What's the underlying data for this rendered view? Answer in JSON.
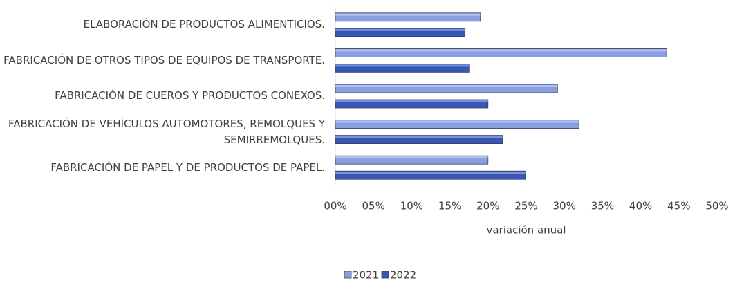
{
  "chart_data": {
    "type": "barh",
    "x_axis_label": "variación anual",
    "categories": [
      "ELABORACIÓN DE PRODUCTOS ALIMENTICIOS.",
      "FABRICACIÓN DE OTROS TIPOS DE EQUIPOS DE TRANSPORTE.",
      "FABRICACIÓN DE CUEROS Y PRODUCTOS CONEXOS.",
      "FABRICACIÓN DE VEHÍCULOS AUTOMOTORES, REMOLQUES Y SEMIRREMOLQUES.",
      "FABRICACIÓN DE PAPEL Y DE PRODUCTOS DE PAPEL."
    ],
    "series": [
      {
        "name": "2021",
        "color": "#8a9fe0",
        "values": [
          19,
          43.4,
          29.1,
          31.9,
          20
        ]
      },
      {
        "name": "2022",
        "color": "#3557b8",
        "values": [
          17,
          17.6,
          20,
          21.9,
          24.9
        ]
      }
    ],
    "xlim": [
      0,
      50
    ],
    "xticks": [
      {
        "value": 0,
        "label": "00%"
      },
      {
        "value": 5,
        "label": "05%"
      },
      {
        "value": 10,
        "label": "10%"
      },
      {
        "value": 15,
        "label": "15%"
      },
      {
        "value": 20,
        "label": "20%"
      },
      {
        "value": 25,
        "label": "25%"
      },
      {
        "value": 30,
        "label": "30%"
      },
      {
        "value": 35,
        "label": "35%"
      },
      {
        "value": 40,
        "label": "40%"
      },
      {
        "value": 45,
        "label": "45%"
      },
      {
        "value": 50,
        "label": "50%"
      }
    ],
    "legend": "bottom"
  }
}
